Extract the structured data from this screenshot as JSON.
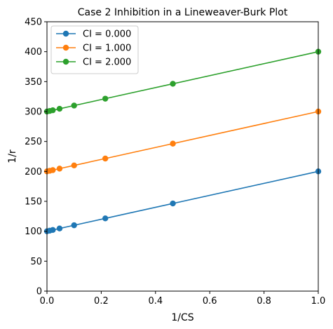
{
  "chart_data": {
    "type": "line",
    "title": "Case 2 Inhibition in a Lineweaver-Burk Plot",
    "xlabel": "1/CS",
    "ylabel": "1/r",
    "xlim": [
      0,
      1
    ],
    "ylim": [
      0,
      450
    ],
    "xticks": [
      "0.0",
      "0.2",
      "0.4",
      "0.6",
      "0.8",
      "1.0"
    ],
    "yticks": [
      "0",
      "50",
      "100",
      "150",
      "200",
      "250",
      "300",
      "350",
      "400",
      "450"
    ],
    "grid": false,
    "legend_position": "upper-left",
    "x": [
      0.0,
      0.01,
      0.0215,
      0.0464,
      0.1,
      0.215,
      0.464,
      1.0
    ],
    "series": [
      {
        "name": "CI = 0.000",
        "color": "#1f77b4",
        "values": [
          100,
          101,
          102.15,
          104.64,
          110,
          121.5,
          146.4,
          200
        ]
      },
      {
        "name": "CI = 1.000",
        "color": "#ff7f0e",
        "values": [
          200,
          201,
          202.15,
          204.64,
          210,
          221.5,
          246.4,
          300
        ]
      },
      {
        "name": "CI = 2.000",
        "color": "#2ca02c",
        "values": [
          300,
          301,
          302.15,
          304.64,
          310,
          321.5,
          346.4,
          400
        ]
      }
    ]
  }
}
